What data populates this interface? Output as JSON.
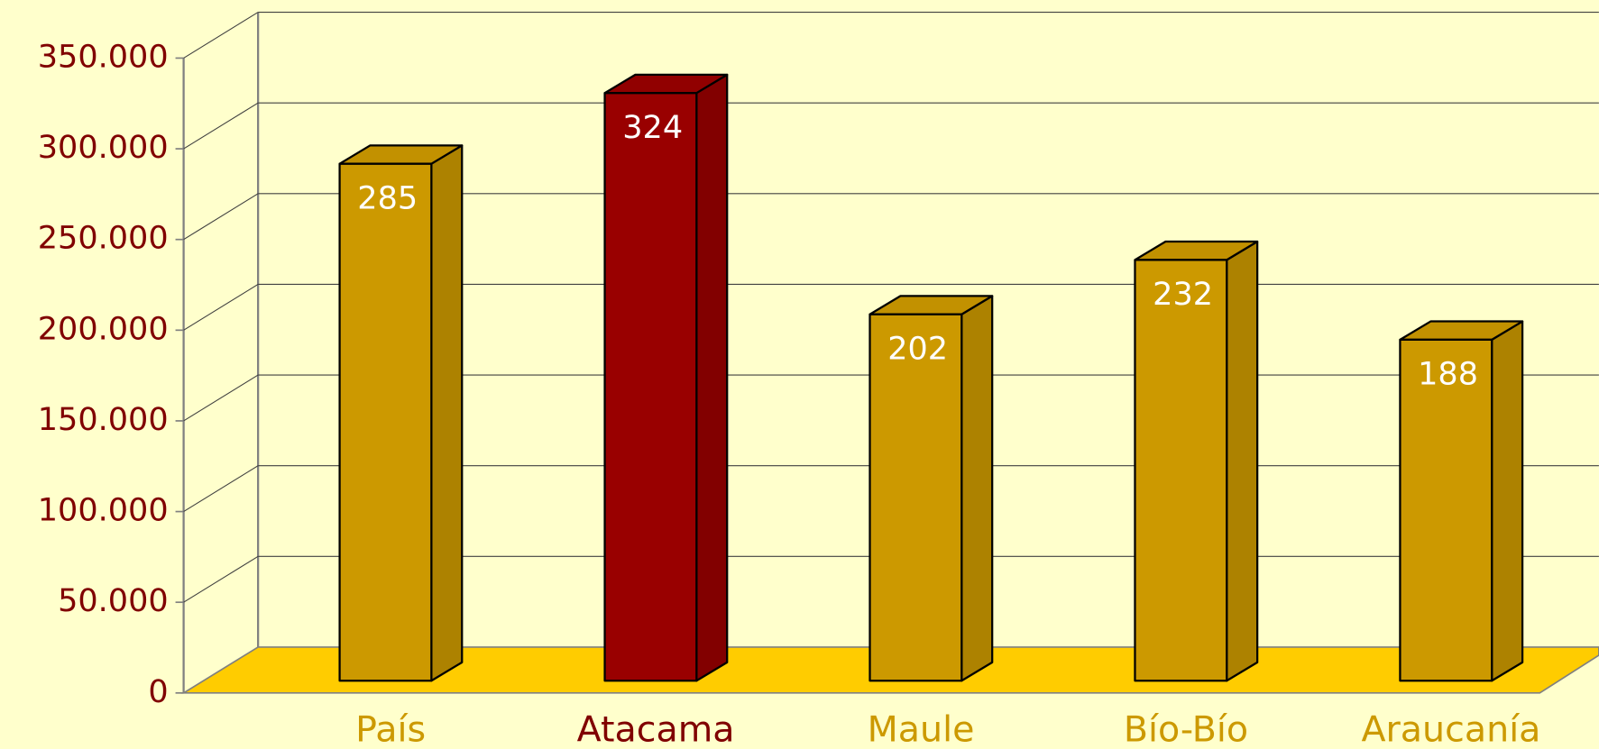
{
  "chart_data": {
    "type": "bar3d",
    "categories": [
      "País",
      "Atacama",
      "Maule",
      "Bío-Bío",
      "Araucanía"
    ],
    "values": [
      285000,
      324000,
      202000,
      232000,
      188000
    ],
    "value_labels": [
      "285",
      "324",
      "202",
      "232",
      "188"
    ],
    "colors": [
      "#CC9900",
      "#990000",
      "#CC9900",
      "#CC9900",
      "#CC9900"
    ],
    "ylim": [
      0,
      350000
    ],
    "yticks": [
      0,
      {
        "value": 50000,
        "label": "50.000"
      },
      {
        "value": 100000,
        "label": "100.000"
      },
      {
        "value": 150000,
        "label": "150.000"
      },
      {
        "value": 200000,
        "label": "200.000"
      },
      {
        "value": 250000,
        "label": "250.000"
      },
      {
        "value": 300000,
        "label": "300.000"
      },
      {
        "value": 350000,
        "label": "350.000"
      }
    ],
    "grid": true
  }
}
